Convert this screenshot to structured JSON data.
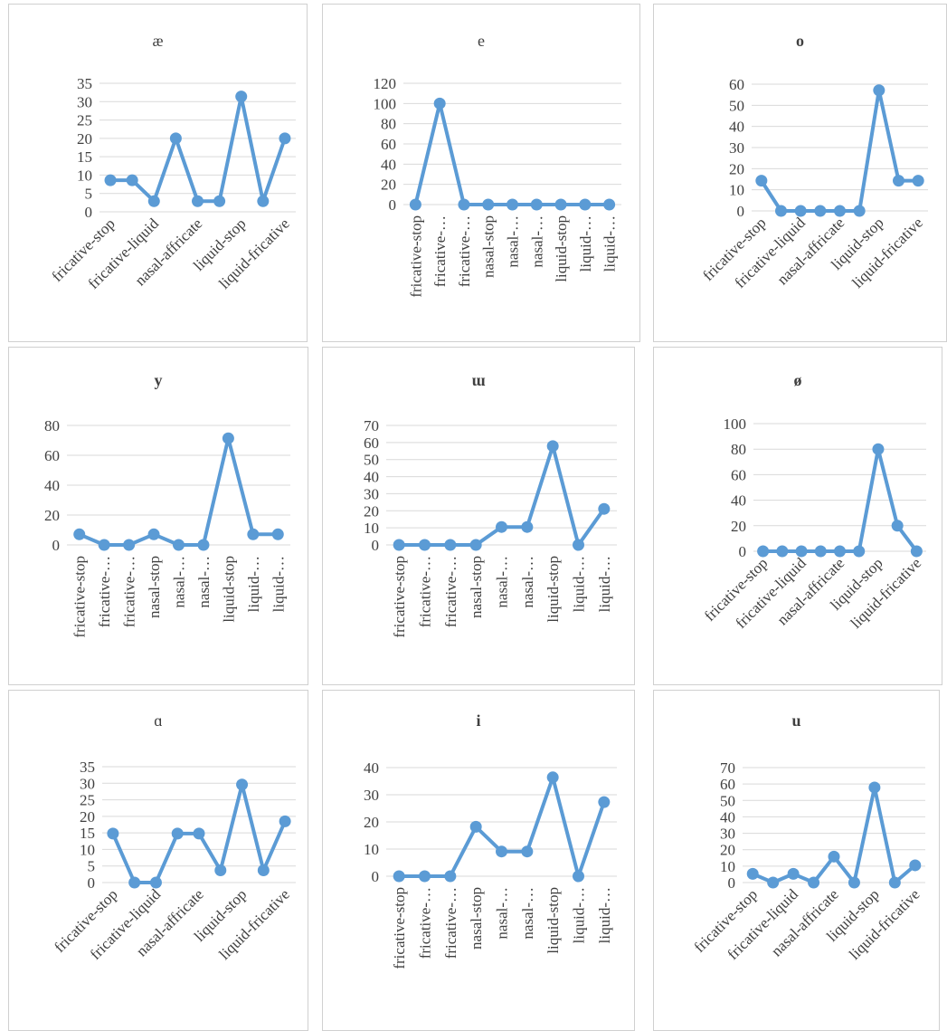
{
  "colors": {
    "series": "#5b9bd5",
    "grid": "#d9d9d9",
    "text": "#404040",
    "border": "#d0d0d0"
  },
  "chart_data": [
    {
      "type": "line",
      "title": "æ",
      "ylim": [
        0,
        35
      ],
      "yticks": [
        0,
        5,
        10,
        15,
        20,
        25,
        30,
        35
      ],
      "xtick_labels": [
        "fricative-stop",
        "fricative-liquid",
        "nasal-affricate",
        "liquid-stop",
        "liquid-fricative"
      ],
      "values": [
        8.6,
        8.6,
        2.9,
        20,
        2.9,
        2.9,
        31.4,
        2.9,
        20
      ],
      "grid": true,
      "legend": "none"
    },
    {
      "type": "line",
      "title": "e",
      "ylim": [
        0,
        120
      ],
      "yticks": [
        0,
        20,
        40,
        60,
        80,
        100,
        120
      ],
      "xtick_labels": [
        "fricative-stop",
        "fricative-…",
        "fricative-…",
        "nasal-stop",
        "nasal-…",
        "nasal-…",
        "liquid-stop",
        "liquid-…",
        "liquid-…"
      ],
      "values": [
        0,
        100,
        0,
        0,
        0,
        0,
        0,
        0,
        0
      ],
      "grid": true,
      "legend": "none"
    },
    {
      "type": "line",
      "title": "o",
      "ylim": [
        0,
        60
      ],
      "yticks": [
        0,
        10,
        20,
        30,
        40,
        50,
        60
      ],
      "xtick_labels": [
        "fricative-stop",
        "fricative-liquid",
        "nasal-affricate",
        "liquid-stop",
        "liquid-fricative"
      ],
      "values": [
        14.3,
        0,
        0,
        0,
        0,
        0,
        57.1,
        14.3,
        14.3
      ],
      "grid": true,
      "legend": "none"
    },
    {
      "type": "line",
      "title": "y",
      "ylim": [
        0,
        80
      ],
      "yticks": [
        0,
        20,
        40,
        60,
        80
      ],
      "xtick_labels": [
        "fricative-stop",
        "fricative-…",
        "fricative-…",
        "nasal-stop",
        "nasal-…",
        "nasal-…",
        "liquid-stop",
        "liquid-…",
        "liquid-…"
      ],
      "values": [
        7.1,
        0,
        0,
        7.1,
        0,
        0,
        71.4,
        7.1,
        7.1
      ],
      "grid": true,
      "legend": "none"
    },
    {
      "type": "line",
      "title": "ɯ",
      "ylim": [
        0,
        70
      ],
      "yticks": [
        0,
        10,
        20,
        30,
        40,
        50,
        60,
        70
      ],
      "xtick_labels": [
        "fricative-stop",
        "fricative-…",
        "fricative-…",
        "nasal-stop",
        "nasal-…",
        "nasal-…",
        "liquid-stop",
        "liquid-…",
        "liquid-…"
      ],
      "values": [
        0,
        0,
        0,
        0,
        10.5,
        10.5,
        57.9,
        0,
        21.1
      ],
      "grid": true,
      "legend": "none"
    },
    {
      "type": "line",
      "title": "ø",
      "ylim": [
        0,
        100
      ],
      "yticks": [
        0,
        20,
        40,
        60,
        80,
        100
      ],
      "xtick_labels": [
        "fricative-stop",
        "fricative-liquid",
        "nasal-affricate",
        "liquid-stop",
        "liquid-fricative"
      ],
      "values": [
        0,
        0,
        0,
        0,
        0,
        0,
        80,
        20,
        0
      ],
      "grid": true,
      "legend": "none"
    },
    {
      "type": "line",
      "title": "ɑ",
      "ylim": [
        0,
        35
      ],
      "yticks": [
        0,
        5,
        10,
        15,
        20,
        25,
        30,
        35
      ],
      "xtick_labels": [
        "fricative-stop",
        "fricative-liquid",
        "nasal-affricate",
        "liquid-stop",
        "liquid-fricative"
      ],
      "values": [
        14.8,
        0,
        0,
        14.8,
        14.8,
        3.7,
        29.6,
        3.7,
        18.5
      ],
      "grid": true,
      "legend": "none"
    },
    {
      "type": "line",
      "title": "i",
      "ylim": [
        0,
        40
      ],
      "yticks": [
        0,
        10,
        20,
        30,
        40
      ],
      "xtick_labels": [
        "fricative-stop",
        "fricative-…",
        "fricative-…",
        "nasal-stop",
        "nasal-…",
        "nasal-…",
        "liquid-stop",
        "liquid-…",
        "liquid-…"
      ],
      "values": [
        0,
        0,
        0,
        18.2,
        9.1,
        9.1,
        36.4,
        0,
        27.3
      ],
      "grid": true,
      "legend": "none"
    },
    {
      "type": "line",
      "title": "u",
      "ylim": [
        0,
        70
      ],
      "yticks": [
        0,
        10,
        20,
        30,
        40,
        50,
        60,
        70
      ],
      "xtick_labels": [
        "fricative-stop",
        "fricative-liquid",
        "nasal-affricate",
        "liquid-stop",
        "liquid-fricative"
      ],
      "values": [
        5.3,
        0,
        5.3,
        0,
        15.8,
        0,
        57.9,
        0,
        10.5
      ],
      "grid": true,
      "legend": "none"
    }
  ]
}
